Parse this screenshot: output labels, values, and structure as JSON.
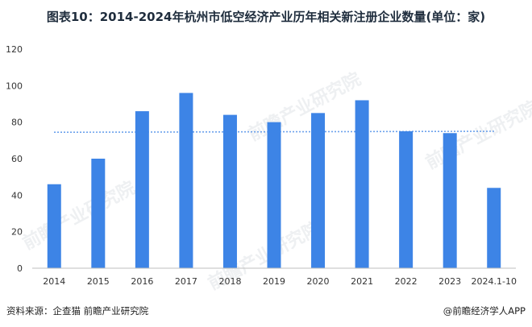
{
  "title": "图表10：2014-2024年杭州市低空经济产业历年相关新注册企业数量(单位：家)",
  "source": "资料来源：企查猫 前瞻产业研究院",
  "brand": "@前瞻经济学人APP",
  "watermark": "前瞻产业研究院",
  "colors": {
    "bar": "#3d84e6",
    "trend": "#3d84e6",
    "axis": "#bfbfbf"
  },
  "chart_data": {
    "type": "bar",
    "categories": [
      "2014",
      "2015",
      "2016",
      "2017",
      "2018",
      "2019",
      "2020",
      "2021",
      "2022",
      "2023",
      "2024.1-10"
    ],
    "values": [
      46,
      60,
      86,
      96,
      84,
      80,
      85,
      92,
      75,
      74,
      44
    ],
    "yticks": [
      0,
      20,
      40,
      60,
      80,
      100,
      120
    ],
    "ylim": [
      0,
      120
    ],
    "trendline": {
      "type": "linear",
      "style": "dotted"
    },
    "grid": false,
    "legend": "none"
  }
}
